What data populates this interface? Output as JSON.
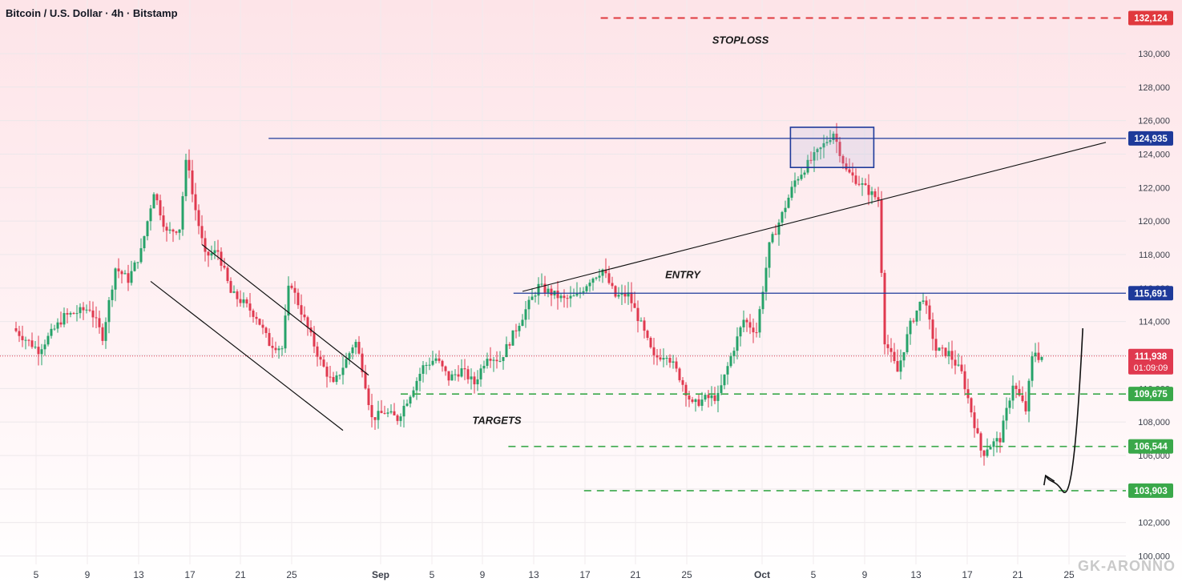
{
  "header": {
    "title": "Bitcoin / U.S. Dollar · 4h · Bitstamp"
  },
  "colors": {
    "up": "#26a269",
    "down": "#e0394f",
    "level_blue": "#1e3a9a",
    "target_green": "#3aa84a",
    "stop_red": "#e0393e",
    "last_price": "#e0394f"
  },
  "watermark": "GK-ARONNO",
  "chart_data": {
    "type": "candlestick",
    "title": "Bitcoin / U.S. Dollar · 4h · Bitstamp",
    "ylim": [
      99500,
      133200
    ],
    "y_ticks": [
      "100,000",
      "102,000",
      "104,000",
      "106,000",
      "108,000",
      "110,000",
      "112,000",
      "114,000",
      "116,000",
      "118,000",
      "120,000",
      "122,000",
      "124,000",
      "126,000",
      "128,000",
      "130,000"
    ],
    "x_ticks": [
      "5",
      "9",
      "13",
      "17",
      "21",
      "25",
      "Sep",
      "5",
      "9",
      "13",
      "17",
      "21",
      "25",
      "Oct",
      "5",
      "9",
      "13",
      "17",
      "21",
      "25"
    ],
    "price_series": [
      {
        "x": 1,
        "y": 113600
      },
      {
        "x": 3,
        "y": 112300
      },
      {
        "x": 5,
        "y": 114300
      },
      {
        "x": 7,
        "y": 114800
      },
      {
        "x": 8,
        "y": 113100
      },
      {
        "x": 9,
        "y": 117200
      },
      {
        "x": 10,
        "y": 116500
      },
      {
        "x": 11,
        "y": 118200
      },
      {
        "x": 12,
        "y": 121800
      },
      {
        "x": 13,
        "y": 119300
      },
      {
        "x": 14,
        "y": 119600
      },
      {
        "x": 14.6,
        "y": 124200
      },
      {
        "x": 15,
        "y": 121600
      },
      {
        "x": 16,
        "y": 117900
      },
      {
        "x": 17,
        "y": 118200
      },
      {
        "x": 18,
        "y": 115700
      },
      {
        "x": 19,
        "y": 115100
      },
      {
        "x": 20,
        "y": 114300
      },
      {
        "x": 21,
        "y": 112700
      },
      {
        "x": 22,
        "y": 112400
      },
      {
        "x": 22.6,
        "y": 116600
      },
      {
        "x": 23,
        "y": 115600
      },
      {
        "x": 24,
        "y": 113600
      },
      {
        "x": 25,
        "y": 111600
      },
      {
        "x": 26,
        "y": 110200
      },
      {
        "x": 27,
        "y": 111700
      },
      {
        "x": 27.7,
        "y": 112900
      },
      {
        "x": 28.3,
        "y": 111100
      },
      {
        "x": 29,
        "y": 108200
      },
      {
        "x": 30,
        "y": 108600
      },
      {
        "x": 31,
        "y": 108200
      },
      {
        "x": 32,
        "y": 109700
      },
      {
        "x": 33,
        "y": 111300
      },
      {
        "x": 34,
        "y": 111800
      },
      {
        "x": 35,
        "y": 110600
      },
      {
        "x": 36,
        "y": 111100
      },
      {
        "x": 37,
        "y": 110300
      },
      {
        "x": 38,
        "y": 112000
      },
      {
        "x": 39,
        "y": 111700
      },
      {
        "x": 40,
        "y": 113200
      },
      {
        "x": 41,
        "y": 114700
      },
      {
        "x": 42,
        "y": 116100
      },
      {
        "x": 43,
        "y": 115700
      },
      {
        "x": 44,
        "y": 115300
      },
      {
        "x": 45,
        "y": 115500
      },
      {
        "x": 46,
        "y": 116500
      },
      {
        "x": 47,
        "y": 117100
      },
      {
        "x": 48,
        "y": 115500
      },
      {
        "x": 49,
        "y": 115600
      },
      {
        "x": 50,
        "y": 113800
      },
      {
        "x": 51,
        "y": 111800
      },
      {
        "x": 52,
        "y": 112100
      },
      {
        "x": 53,
        "y": 110700
      },
      {
        "x": 54,
        "y": 109000
      },
      {
        "x": 55,
        "y": 109400
      },
      {
        "x": 56,
        "y": 109500
      },
      {
        "x": 57,
        "y": 111900
      },
      {
        "x": 58,
        "y": 114100
      },
      {
        "x": 59,
        "y": 113400
      },
      {
        "x": 60,
        "y": 118500
      },
      {
        "x": 61,
        "y": 120400
      },
      {
        "x": 62,
        "y": 122400
      },
      {
        "x": 63,
        "y": 123400
      },
      {
        "x": 64,
        "y": 124300
      },
      {
        "x": 65,
        "y": 125300
      },
      {
        "x": 66,
        "y": 123000
      },
      {
        "x": 67,
        "y": 122300
      },
      {
        "x": 68,
        "y": 121600
      },
      {
        "x": 68.5,
        "y": 121300
      },
      {
        "x": 69,
        "y": 112900
      },
      {
        "x": 70,
        "y": 111000
      },
      {
        "x": 71,
        "y": 113800
      },
      {
        "x": 72,
        "y": 115500
      },
      {
        "x": 73,
        "y": 112300
      },
      {
        "x": 74,
        "y": 112100
      },
      {
        "x": 75,
        "y": 110900
      },
      {
        "x": 76,
        "y": 107900
      },
      {
        "x": 76.6,
        "y": 106000
      },
      {
        "x": 77,
        "y": 106500
      },
      {
        "x": 78,
        "y": 107000
      },
      {
        "x": 79,
        "y": 110300
      },
      {
        "x": 80,
        "y": 108700
      },
      {
        "x": 80.6,
        "y": 112400
      },
      {
        "x": 81,
        "y": 111900
      }
    ],
    "levels": [
      {
        "name": "stoploss",
        "value": 132124,
        "label": "132,124",
        "style": "dashed-red"
      },
      {
        "name": "high",
        "value": 124935,
        "label": "124,935",
        "style": "solid-blue"
      },
      {
        "name": "entry",
        "value": 115691,
        "label": "115,691",
        "style": "solid-blue"
      },
      {
        "name": "target1",
        "value": 109675,
        "label": "109,675",
        "style": "dashed-green"
      },
      {
        "name": "target2",
        "value": 106544,
        "label": "106,544",
        "style": "dashed-green"
      },
      {
        "name": "target3",
        "value": 103903,
        "label": "103,903",
        "style": "dashed-green"
      }
    ],
    "last_price": {
      "value": 111938,
      "label": "111,938",
      "countdown": "01:09:09"
    },
    "annotations": [
      {
        "text": "STOPLOSS",
        "x": 57.5,
        "y": 130600
      },
      {
        "text": "ENTRY",
        "x": 53,
        "y": 116600
      },
      {
        "text": "TARGETS",
        "x": 38.5,
        "y": 107900
      }
    ],
    "shapes": {
      "channel_upper": [
        [
          15.5,
          118600
        ],
        [
          28.5,
          110800
        ]
      ],
      "channel_lower": [
        [
          11.5,
          116400
        ],
        [
          26.5,
          107500
        ]
      ],
      "trendline": [
        [
          40.5,
          115800
        ],
        [
          86,
          124700
        ]
      ],
      "high_box": {
        "x0": 61.4,
        "x1": 67.9,
        "y0": 123200,
        "y1": 125600
      },
      "high_line_start": 20.7,
      "entry_line_start": 39.8,
      "target_starts": [
        31,
        39.4,
        45.3
      ],
      "stop_start": 46.6,
      "arrow_path": [
        [
          84.2,
          113600
        ],
        [
          83.7,
          106500
        ],
        [
          82.6,
          103900
        ],
        [
          81.3,
          104800
        ]
      ]
    }
  }
}
